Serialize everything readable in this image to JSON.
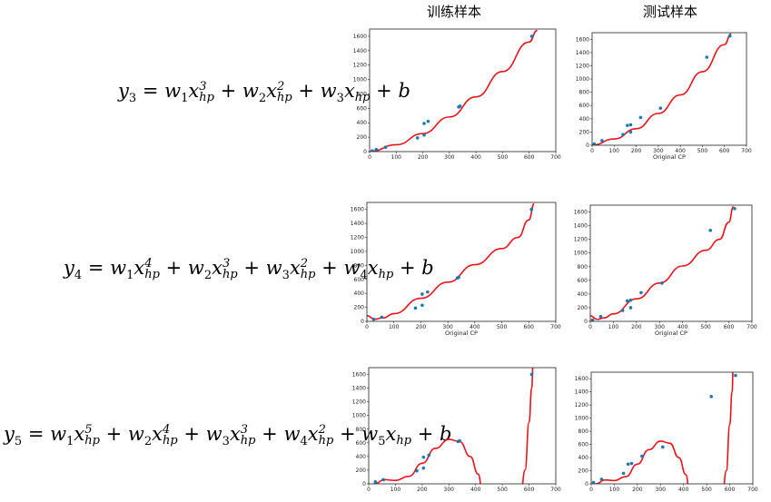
{
  "headers": {
    "train": "训练样本",
    "test": "测试样本"
  },
  "equations": [
    {
      "lhs_var": "y",
      "lhs_sub": "3",
      "terms": [
        {
          "w": "1",
          "exp": "3"
        },
        {
          "w": "2",
          "exp": "2"
        },
        {
          "w": "3",
          "exp": ""
        }
      ],
      "bias": "b"
    },
    {
      "lhs_var": "y",
      "lhs_sub": "4",
      "terms": [
        {
          "w": "1",
          "exp": "4"
        },
        {
          "w": "2",
          "exp": "3"
        },
        {
          "w": "3",
          "exp": "2"
        },
        {
          "w": "4",
          "exp": ""
        }
      ],
      "bias": "b"
    },
    {
      "lhs_var": "y",
      "lhs_sub": "5",
      "terms": [
        {
          "w": "1",
          "exp": "5"
        },
        {
          "w": "2",
          "exp": "4"
        },
        {
          "w": "3",
          "exp": "3"
        },
        {
          "w": "4",
          "exp": "2"
        },
        {
          "w": "5",
          "exp": ""
        }
      ],
      "bias": "b"
    }
  ],
  "chart_data": [
    {
      "id": "train-deg3",
      "type": "scatter",
      "xlim": [
        0,
        700
      ],
      "ylim": [
        0,
        1700
      ],
      "xticks": [
        0,
        100,
        200,
        300,
        400,
        500,
        600,
        700
      ],
      "yticks": [
        0,
        200,
        400,
        600,
        800,
        1000,
        1200,
        1400,
        1600
      ],
      "xlabel": "",
      "points": [
        [
          10,
          10
        ],
        [
          25,
          30
        ],
        [
          60,
          60
        ],
        [
          180,
          190
        ],
        [
          205,
          230
        ],
        [
          205,
          390
        ],
        [
          220,
          420
        ],
        [
          335,
          620
        ],
        [
          340,
          630
        ],
        [
          610,
          1600
        ]
      ],
      "curve": [
        [
          0,
          0
        ],
        [
          100,
          95
        ],
        [
          200,
          250
        ],
        [
          300,
          480
        ],
        [
          400,
          760
        ],
        [
          500,
          1110
        ],
        [
          600,
          1520
        ],
        [
          630,
          1680
        ]
      ]
    },
    {
      "id": "test-deg3",
      "type": "scatter",
      "xlim": [
        0,
        700
      ],
      "ylim": [
        0,
        1700
      ],
      "xticks": [
        0,
        100,
        200,
        300,
        400,
        500,
        600,
        700
      ],
      "yticks": [
        0,
        200,
        400,
        600,
        800,
        1000,
        1200,
        1400,
        1600
      ],
      "xlabel": "Original CP",
      "points": [
        [
          10,
          20
        ],
        [
          45,
          70
        ],
        [
          140,
          160
        ],
        [
          160,
          300
        ],
        [
          175,
          200
        ],
        [
          175,
          310
        ],
        [
          220,
          420
        ],
        [
          310,
          560
        ],
        [
          520,
          1330
        ],
        [
          625,
          1650
        ]
      ],
      "curve": [
        [
          0,
          0
        ],
        [
          100,
          95
        ],
        [
          200,
          250
        ],
        [
          300,
          480
        ],
        [
          400,
          760
        ],
        [
          500,
          1110
        ],
        [
          600,
          1520
        ],
        [
          630,
          1680
        ]
      ]
    },
    {
      "id": "train-deg4",
      "type": "scatter",
      "xlim": [
        0,
        700
      ],
      "ylim": [
        0,
        1700
      ],
      "xticks": [
        0,
        100,
        200,
        300,
        400,
        500,
        600,
        700
      ],
      "yticks": [
        0,
        200,
        400,
        600,
        800,
        1000,
        1200,
        1400,
        1600
      ],
      "xlabel": "Original CP",
      "points": [
        [
          25,
          30
        ],
        [
          55,
          60
        ],
        [
          180,
          190
        ],
        [
          205,
          230
        ],
        [
          205,
          390
        ],
        [
          225,
          420
        ],
        [
          335,
          620
        ],
        [
          340,
          630
        ],
        [
          610,
          1600
        ]
      ],
      "curve": [
        [
          0,
          80
        ],
        [
          30,
          30
        ],
        [
          60,
          50
        ],
        [
          100,
          110
        ],
        [
          200,
          330
        ],
        [
          300,
          560
        ],
        [
          400,
          810
        ],
        [
          500,
          1040
        ],
        [
          560,
          1200
        ],
        [
          600,
          1450
        ],
        [
          620,
          1680
        ]
      ]
    },
    {
      "id": "test-deg4",
      "type": "scatter",
      "xlim": [
        0,
        700
      ],
      "ylim": [
        0,
        1700
      ],
      "xticks": [
        0,
        100,
        200,
        300,
        400,
        500,
        600,
        700
      ],
      "yticks": [
        0,
        200,
        400,
        600,
        800,
        1000,
        1200,
        1400,
        1600
      ],
      "xlabel": "Original CP",
      "points": [
        [
          10,
          20
        ],
        [
          45,
          70
        ],
        [
          140,
          160
        ],
        [
          160,
          300
        ],
        [
          175,
          200
        ],
        [
          175,
          310
        ],
        [
          220,
          420
        ],
        [
          310,
          560
        ],
        [
          520,
          1330
        ],
        [
          625,
          1650
        ]
      ],
      "curve": [
        [
          0,
          80
        ],
        [
          30,
          30
        ],
        [
          60,
          50
        ],
        [
          100,
          110
        ],
        [
          200,
          330
        ],
        [
          300,
          560
        ],
        [
          400,
          810
        ],
        [
          500,
          1040
        ],
        [
          560,
          1200
        ],
        [
          600,
          1450
        ],
        [
          620,
          1680
        ]
      ]
    },
    {
      "id": "train-deg5",
      "type": "scatter",
      "xlim": [
        0,
        700
      ],
      "ylim": [
        0,
        1700
      ],
      "xticks": [
        0,
        100,
        200,
        300,
        400,
        500,
        600,
        700
      ],
      "yticks": [
        0,
        200,
        400,
        600,
        800,
        1000,
        1200,
        1400,
        1600
      ],
      "xlabel": "",
      "points": [
        [
          25,
          30
        ],
        [
          55,
          60
        ],
        [
          180,
          190
        ],
        [
          205,
          230
        ],
        [
          205,
          390
        ],
        [
          225,
          420
        ],
        [
          335,
          620
        ],
        [
          340,
          630
        ],
        [
          610,
          1600
        ]
      ],
      "curve": [
        [
          0,
          -200
        ],
        [
          20,
          0
        ],
        [
          60,
          60
        ],
        [
          100,
          50
        ],
        [
          150,
          110
        ],
        [
          200,
          300
        ],
        [
          250,
          520
        ],
        [
          300,
          650
        ],
        [
          340,
          620
        ],
        [
          380,
          400
        ],
        [
          410,
          140
        ],
        [
          425,
          -100
        ]
      ],
      "curve2": [
        [
          570,
          -100
        ],
        [
          585,
          200
        ],
        [
          600,
          900
        ],
        [
          610,
          1400
        ],
        [
          615,
          1750
        ]
      ]
    },
    {
      "id": "test-deg5",
      "type": "scatter",
      "xlim": [
        0,
        700
      ],
      "ylim": [
        0,
        1700
      ],
      "xticks": [
        0,
        100,
        200,
        300,
        400,
        500,
        600,
        700
      ],
      "yticks": [
        0,
        200,
        400,
        600,
        800,
        1000,
        1200,
        1400,
        1600
      ],
      "xlabel": "",
      "points": [
        [
          10,
          20
        ],
        [
          45,
          70
        ],
        [
          140,
          160
        ],
        [
          160,
          300
        ],
        [
          175,
          310
        ],
        [
          220,
          420
        ],
        [
          310,
          560
        ],
        [
          520,
          1330
        ],
        [
          625,
          1650
        ]
      ],
      "curve": [
        [
          0,
          -200
        ],
        [
          20,
          0
        ],
        [
          60,
          60
        ],
        [
          100,
          50
        ],
        [
          150,
          110
        ],
        [
          200,
          300
        ],
        [
          250,
          520
        ],
        [
          300,
          650
        ],
        [
          340,
          620
        ],
        [
          380,
          400
        ],
        [
          410,
          140
        ],
        [
          425,
          -100
        ]
      ],
      "curve2": [
        [
          570,
          -100
        ],
        [
          585,
          200
        ],
        [
          600,
          900
        ],
        [
          610,
          1400
        ],
        [
          615,
          1750
        ]
      ]
    }
  ],
  "colors": {
    "points": "#1f77b4",
    "curve": "#e8141d",
    "axis": "#222222"
  }
}
